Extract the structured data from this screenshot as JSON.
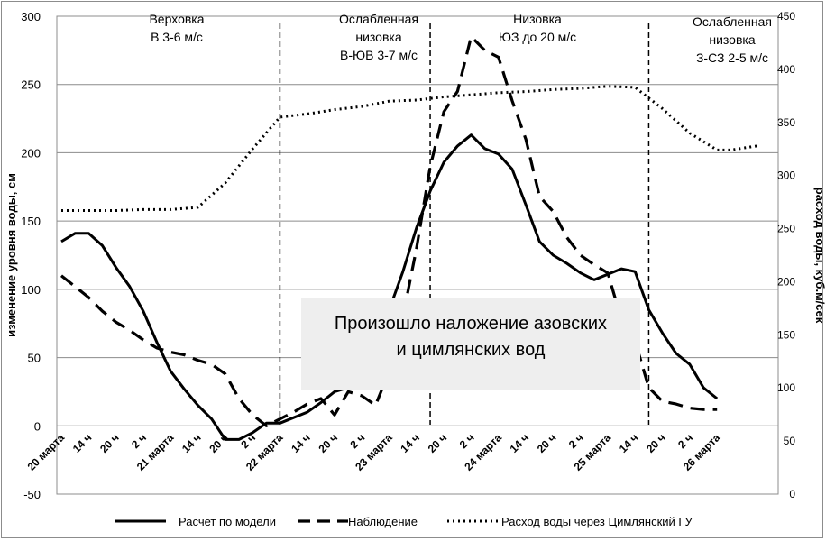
{
  "chart_data": {
    "type": "line",
    "xlabel": "",
    "ylabel": "изменение уровня воды, см",
    "ylabel_right": "расход воды, куб.м/сек",
    "ylim": [
      -50,
      300
    ],
    "ylim_right": [
      0,
      450
    ],
    "yticks": [
      "-50",
      "0",
      "50",
      "100",
      "150",
      "200",
      "250",
      "300"
    ],
    "yticks_right": [
      "0",
      "50",
      "100",
      "150",
      "200",
      "250",
      "300",
      "350",
      "400",
      "450"
    ],
    "grid": "horizontal",
    "categories": [
      "20 марта",
      "14 ч",
      "20 ч",
      "2 ч",
      "21 марта",
      "14 ч",
      "20 ч",
      "2 ч",
      "22 марта",
      "14 ч",
      "20 ч",
      "2 ч",
      "23 марта",
      "14 ч",
      "20 ч",
      "2 ч",
      "24 марта",
      "14 ч",
      "20 ч",
      "2 ч",
      "25 марта",
      "14 ч",
      "20 ч",
      "2 ч",
      "26 марта"
    ],
    "series": [
      {
        "name": "Расчет по модели",
        "style": "solid",
        "axis": "left",
        "x": [
          0,
          0.5,
          1,
          1.5,
          2,
          2.5,
          3,
          3.5,
          4,
          4.5,
          5,
          5.5,
          6,
          6.5,
          7,
          7.5,
          8,
          8.5,
          9,
          9.5,
          10,
          10.5,
          11,
          11.5,
          12,
          12.5,
          13,
          13.5,
          14,
          14.5,
          15,
          15.5,
          16,
          16.5,
          17,
          17.5,
          18,
          18.5,
          19,
          19.5,
          20,
          20.5,
          21,
          21.5,
          22,
          22.5,
          23,
          23.5,
          24
        ],
        "values": [
          135,
          141,
          141,
          132,
          116,
          102,
          84,
          61,
          40,
          27,
          15,
          5,
          -10,
          -10,
          -5,
          2,
          2,
          6,
          10,
          17,
          25,
          28,
          37,
          58,
          85,
          113,
          145,
          172,
          193,
          205,
          213,
          203,
          199,
          188,
          162,
          135,
          125,
          119,
          112,
          107,
          111,
          115,
          113,
          85,
          68,
          53,
          45,
          28,
          20
        ]
      },
      {
        "name": "Наблюдение",
        "style": "dashed",
        "axis": "left",
        "x": [
          0,
          0.5,
          1,
          1.5,
          2,
          2.5,
          3,
          3.5,
          4,
          4.5,
          5,
          5.5,
          6,
          6.5,
          7,
          7.5,
          8,
          8.5,
          9,
          9.5,
          10,
          10.5,
          11,
          11.5,
          12,
          12.5,
          13,
          13.5,
          14,
          14.5,
          15,
          15.5,
          16,
          16.5,
          17,
          17.5,
          18,
          18.5,
          19,
          19.5,
          20,
          20.5,
          21,
          21.5,
          22,
          22.5,
          23,
          23.5,
          24
        ],
        "values": [
          110,
          102,
          94,
          84,
          76,
          70,
          63,
          57,
          54,
          52,
          48,
          45,
          38,
          20,
          8,
          0,
          5,
          10,
          16,
          20,
          8,
          25,
          22,
          15,
          40,
          80,
          130,
          190,
          230,
          245,
          285,
          275,
          270,
          238,
          210,
          168,
          157,
          138,
          125,
          118,
          112,
          78,
          62,
          28,
          18,
          16,
          13,
          12,
          12
        ]
      },
      {
        "name": "Расход воды через Цимлянский ГУ",
        "style": "dotted",
        "axis": "right",
        "x": [
          0,
          1,
          2,
          3,
          4,
          5,
          6,
          7,
          8,
          9,
          10,
          11,
          12,
          13,
          14,
          15,
          16,
          17,
          18,
          19,
          20,
          21,
          22,
          23,
          24,
          24.5,
          25,
          25.5
        ],
        "values": [
          267,
          267,
          267,
          268,
          268,
          270,
          293,
          325,
          355,
          358,
          362,
          365,
          370,
          371,
          374,
          376,
          378,
          379,
          381,
          382,
          384,
          383,
          363,
          340,
          324,
          324,
          326,
          328
        ]
      }
    ],
    "separators_x": [
      8,
      13.5,
      21.5
    ],
    "annotations": [
      {
        "lines": [
          "Верховка",
          "В 3-6 м/с"
        ]
      },
      {
        "lines": [
          "Ослабленная",
          "низовка",
          "В-ЮВ 3-7 м/с"
        ]
      },
      {
        "lines": [
          "Низовка",
          "ЮЗ до 20 м/с"
        ]
      },
      {
        "lines": [
          "Ослабленная",
          "низовка",
          "З-СЗ 2-5 м/с"
        ]
      }
    ],
    "callout": [
      "Произошло наложение азовских",
      "и цимлянских вод"
    ],
    "legend_position": "bottom"
  }
}
